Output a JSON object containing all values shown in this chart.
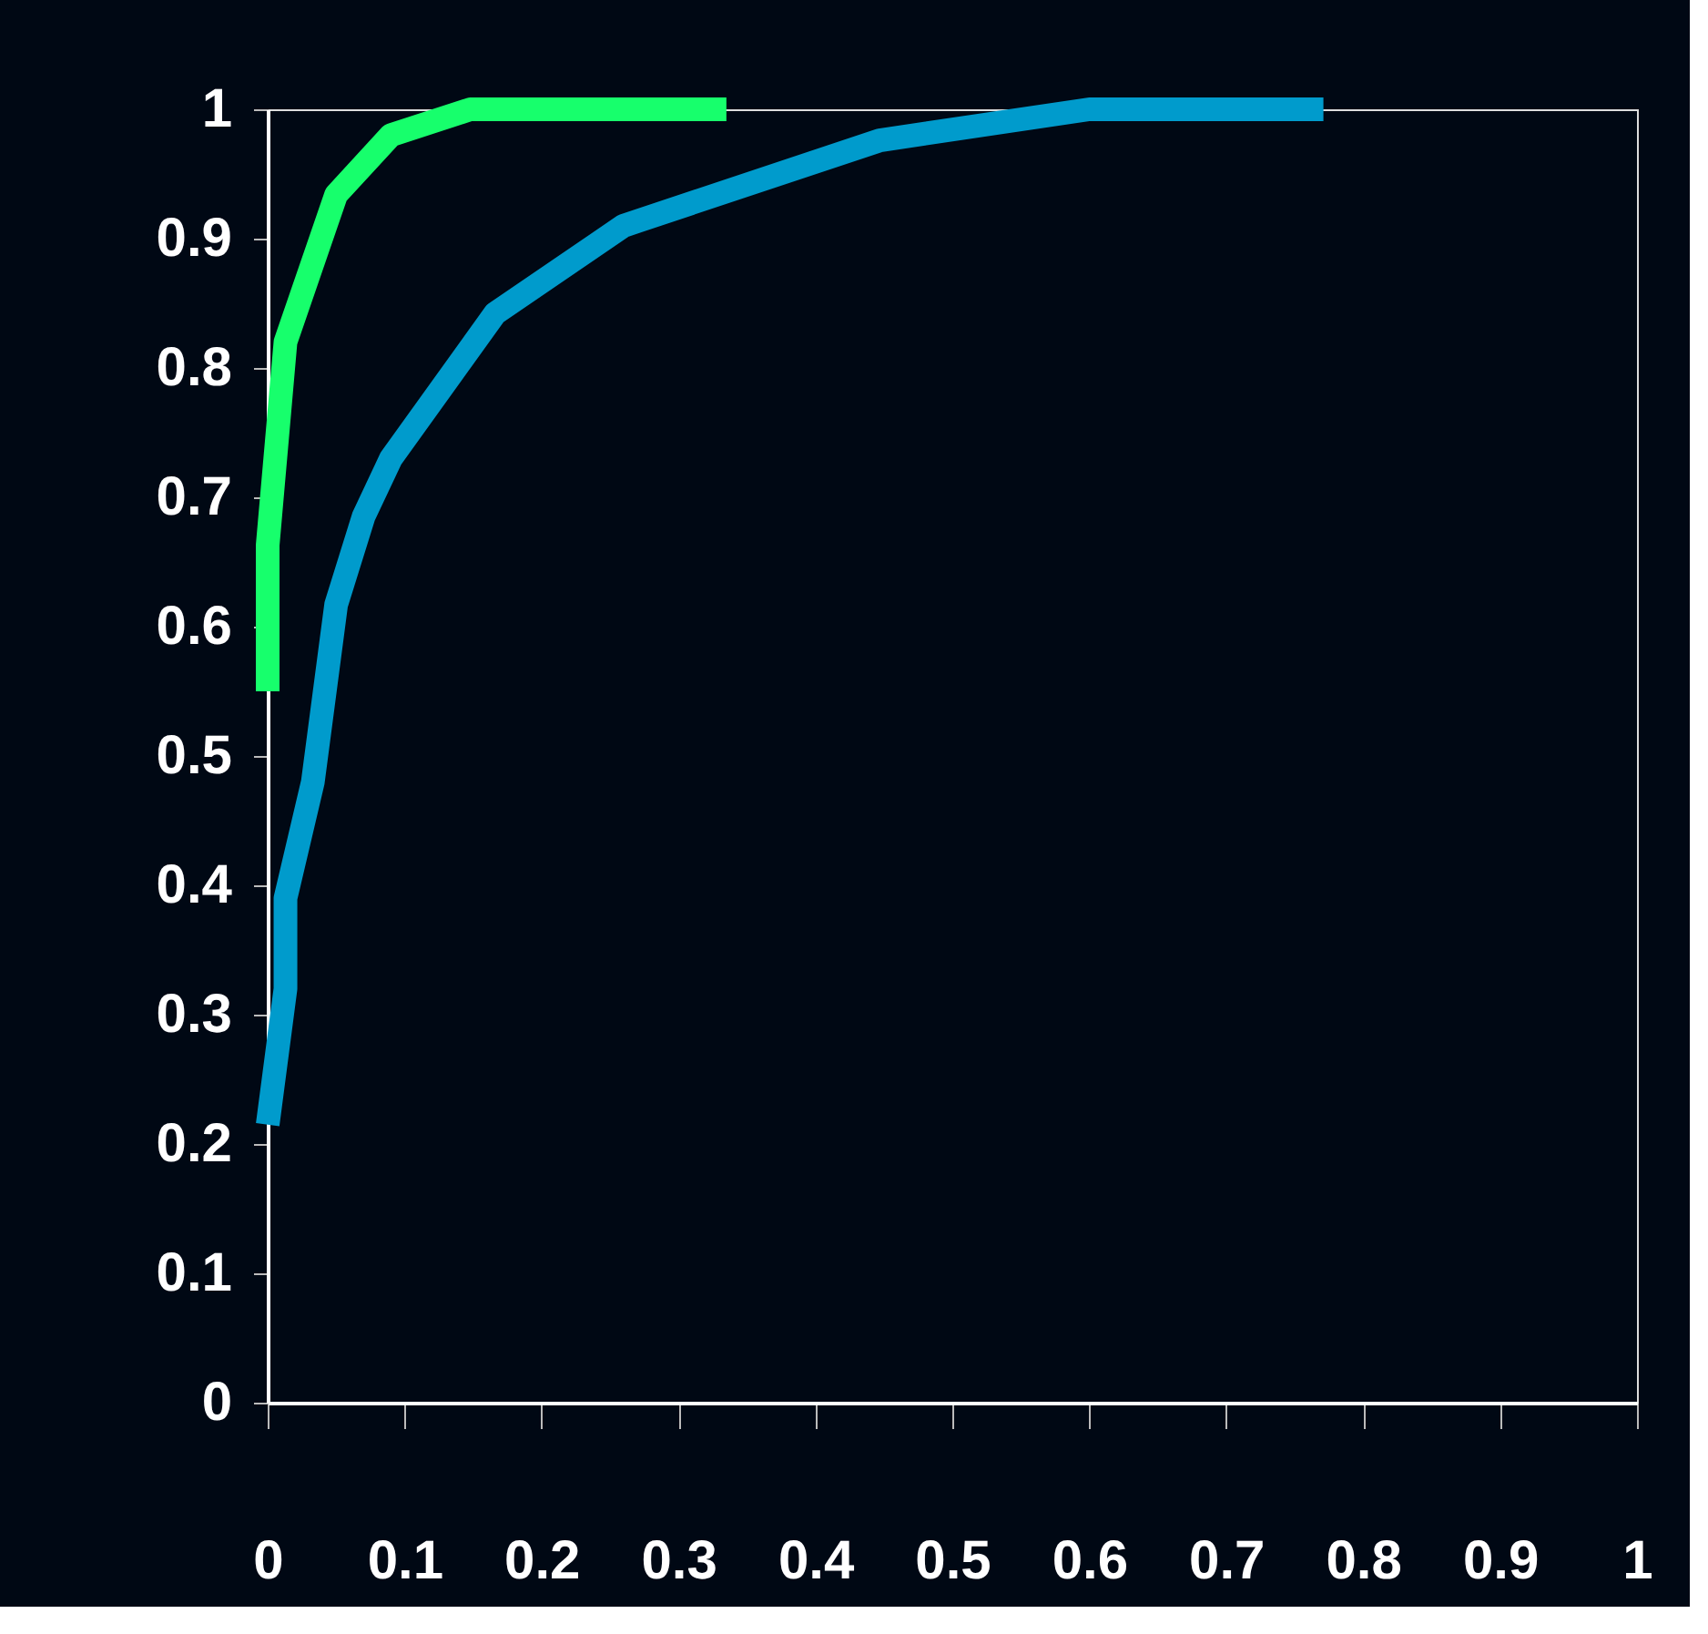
{
  "chart_data": {
    "type": "line",
    "xlim": [
      0,
      1
    ],
    "ylim": [
      0,
      1
    ],
    "xticks": [
      0,
      0.1,
      0.2,
      0.3,
      0.4,
      0.5,
      0.6,
      0.7,
      0.8,
      0.9,
      1
    ],
    "yticks": [
      0,
      0.1,
      0.2,
      0.3,
      0.4,
      0.5,
      0.6,
      0.7,
      0.8,
      0.9,
      1
    ],
    "grid": false,
    "legend": false,
    "marker": "none",
    "line_style": "solid",
    "series": [
      {
        "color": "#17ff6c",
        "x": [
          0,
          0,
          0.013,
          0.05,
          0.09,
          0.148,
          0.335
        ],
        "values": [
          0.55,
          0.663,
          0.82,
          0.934,
          0.98,
          1,
          1
        ]
      },
      {
        "color": "#009bcc",
        "x": [
          0,
          0.013,
          0.013,
          0.033,
          0.05,
          0.07,
          0.09,
          0.166,
          0.26,
          0.447,
          0.6,
          0.771
        ],
        "values": [
          0.215,
          0.32,
          0.39,
          0.48,
          0.617,
          0.685,
          0.73,
          0.842,
          0.91,
          0.976,
          1,
          1
        ]
      }
    ]
  }
}
